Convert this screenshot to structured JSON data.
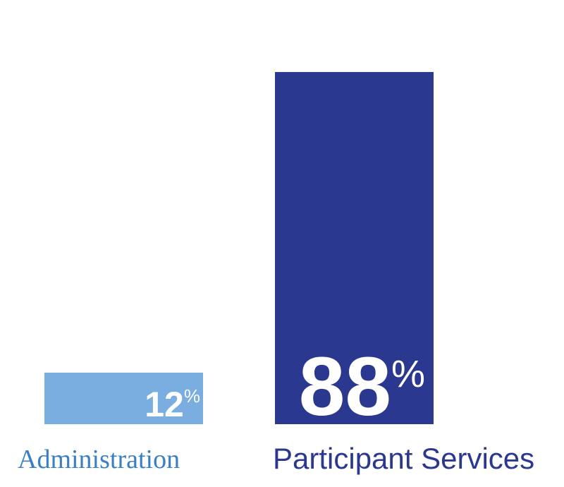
{
  "chart_data": {
    "type": "bar",
    "title": "",
    "xlabel": "",
    "ylabel": "",
    "ylim": [
      0,
      100
    ],
    "grid": false,
    "categories": [
      "Administration",
      "Participant Services"
    ],
    "values": [
      12,
      88
    ],
    "value_labels": [
      {
        "number": "12",
        "unit": "%"
      },
      {
        "number": "88",
        "unit": "%"
      }
    ],
    "colors": [
      "#7aade0",
      "#2b388f"
    ],
    "label_colors": [
      "#3a7fc4",
      "#2b388f"
    ]
  }
}
